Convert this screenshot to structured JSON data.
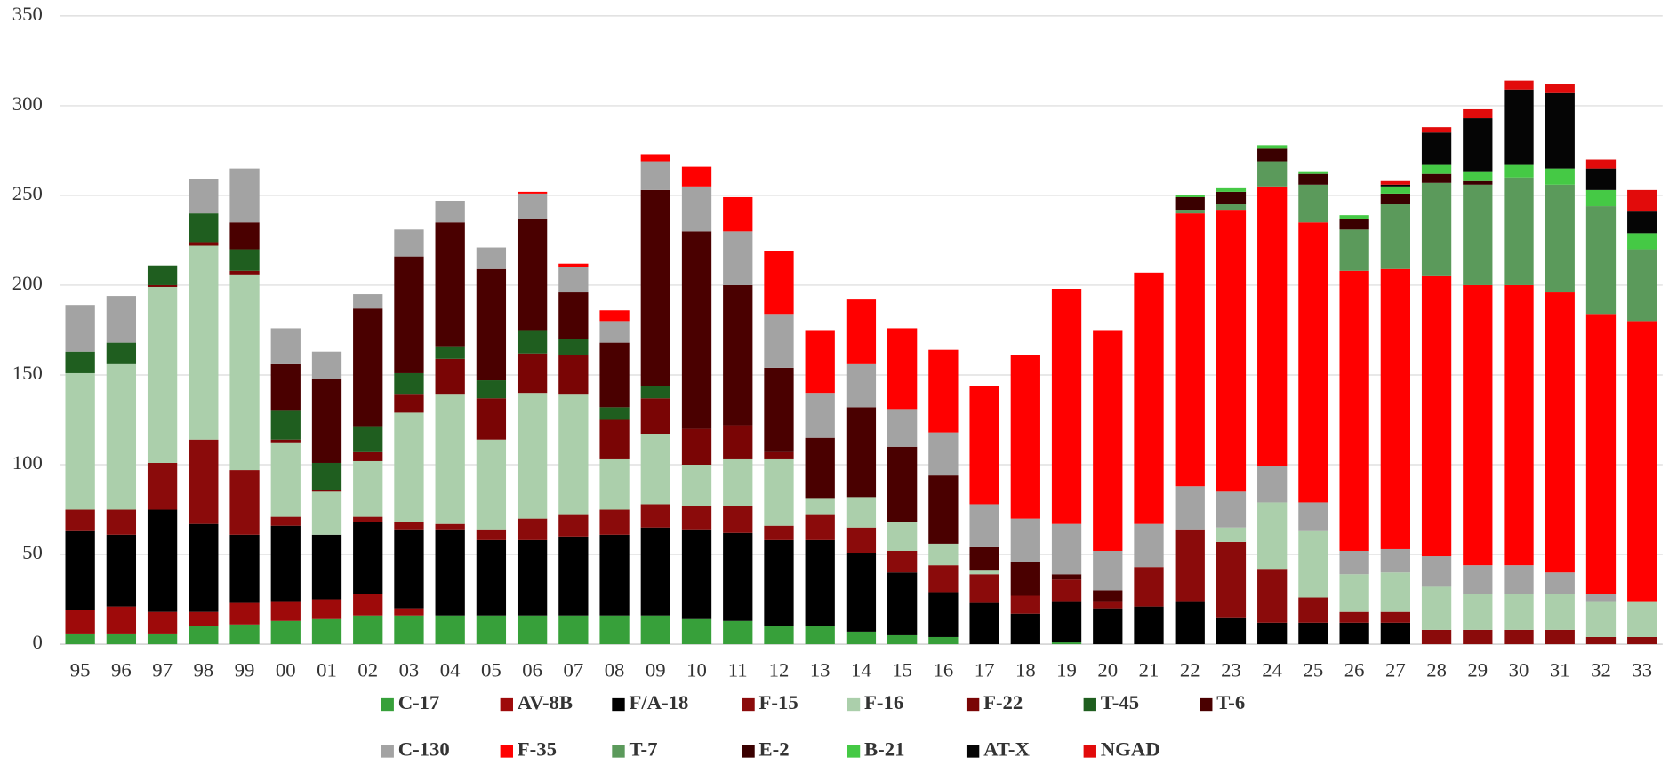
{
  "chart_data": {
    "type": "stacked-bar",
    "categories": [
      "95",
      "96",
      "97",
      "98",
      "99",
      "00",
      "01",
      "02",
      "03",
      "04",
      "05",
      "06",
      "07",
      "08",
      "09",
      "10",
      "11",
      "12",
      "13",
      "14",
      "15",
      "16",
      "17",
      "18",
      "19",
      "20",
      "21",
      "22",
      "23",
      "24",
      "25",
      "26",
      "27",
      "28",
      "29",
      "30",
      "31",
      "32",
      "33"
    ],
    "ylim": [
      0,
      350
    ],
    "yticks": [
      0,
      50,
      100,
      150,
      200,
      250,
      300,
      350
    ],
    "grid": true,
    "legend": "bottom",
    "series": [
      {
        "name": "C-17",
        "color": "#37a03a",
        "values": [
          6,
          6,
          6,
          10,
          11,
          13,
          14,
          16,
          16,
          16,
          16,
          16,
          16,
          16,
          16,
          14,
          13,
          10,
          10,
          7,
          5,
          4,
          0,
          0,
          1,
          0,
          0,
          0,
          0,
          0,
          0,
          0,
          0,
          0,
          0,
          0,
          0,
          0,
          0
        ]
      },
      {
        "name": "AV-8B",
        "color": "#9e0a0a",
        "values": [
          13,
          15,
          12,
          8,
          12,
          11,
          11,
          12,
          4,
          0,
          0,
          0,
          0,
          0,
          0,
          0,
          0,
          0,
          0,
          0,
          0,
          0,
          0,
          0,
          0,
          0,
          0,
          0,
          0,
          0,
          0,
          0,
          0,
          0,
          0,
          0,
          0,
          0,
          0
        ]
      },
      {
        "name": "F/A-18",
        "color": "#000000",
        "values": [
          44,
          40,
          57,
          49,
          38,
          42,
          36,
          40,
          44,
          48,
          42,
          42,
          44,
          45,
          49,
          50,
          49,
          48,
          48,
          44,
          35,
          25,
          23,
          17,
          23,
          20,
          21,
          24,
          15,
          12,
          12,
          12,
          12,
          0,
          0,
          0,
          0,
          0,
          0
        ]
      },
      {
        "name": "F-15",
        "color": "#8b0b0b",
        "values": [
          12,
          14,
          26,
          47,
          36,
          5,
          0,
          3,
          4,
          3,
          6,
          12,
          12,
          14,
          13,
          13,
          15,
          8,
          14,
          14,
          12,
          15,
          16,
          10,
          12,
          4,
          22,
          40,
          42,
          30,
          14,
          6,
          6,
          8,
          8,
          8,
          8,
          4,
          4
        ]
      },
      {
        "name": "F-16",
        "color": "#abcfab",
        "values": [
          76,
          81,
          98,
          108,
          109,
          41,
          24,
          31,
          61,
          72,
          50,
          70,
          67,
          28,
          39,
          23,
          26,
          37,
          9,
          17,
          16,
          12,
          2,
          0,
          0,
          0,
          0,
          0,
          8,
          37,
          37,
          21,
          22,
          24,
          20,
          20,
          20,
          20,
          20
        ]
      },
      {
        "name": "F-22",
        "color": "#7a0505",
        "values": [
          0,
          0,
          1,
          2,
          2,
          2,
          1,
          5,
          10,
          20,
          23,
          22,
          22,
          22,
          20,
          20,
          19,
          4,
          0,
          0,
          0,
          0,
          0,
          0,
          0,
          0,
          0,
          0,
          0,
          0,
          0,
          0,
          0,
          0,
          0,
          0,
          0,
          0,
          0
        ]
      },
      {
        "name": "T-45",
        "color": "#1f5e1f",
        "values": [
          12,
          12,
          11,
          16,
          12,
          16,
          15,
          14,
          12,
          7,
          10,
          13,
          9,
          7,
          7,
          0,
          0,
          0,
          0,
          0,
          0,
          0,
          0,
          0,
          0,
          0,
          0,
          0,
          0,
          0,
          0,
          0,
          0,
          0,
          0,
          0,
          0,
          0,
          0
        ]
      },
      {
        "name": "T-6",
        "color": "#4a0000",
        "values": [
          0,
          0,
          0,
          0,
          15,
          26,
          47,
          66,
          65,
          69,
          62,
          62,
          26,
          36,
          109,
          110,
          78,
          47,
          34,
          50,
          42,
          38,
          13,
          19,
          3,
          6,
          0,
          0,
          0,
          0,
          0,
          0,
          0,
          0,
          0,
          0,
          0,
          0,
          0
        ]
      },
      {
        "name": "C-130",
        "color": "#a3a3a3",
        "values": [
          26,
          26,
          0,
          19,
          30,
          20,
          15,
          8,
          15,
          12,
          12,
          14,
          14,
          12,
          16,
          25,
          30,
          30,
          25,
          24,
          21,
          24,
          24,
          24,
          28,
          22,
          24,
          24,
          20,
          20,
          16,
          13,
          13,
          17,
          16,
          16,
          12,
          4,
          0
        ]
      },
      {
        "name": "F-35",
        "color": "#ff0000",
        "values": [
          0,
          0,
          0,
          0,
          0,
          0,
          0,
          0,
          0,
          0,
          0,
          1,
          2,
          6,
          4,
          11,
          19,
          35,
          35,
          36,
          45,
          46,
          66,
          91,
          131,
          123,
          140,
          152,
          157,
          156,
          156,
          156,
          156,
          156,
          156,
          156,
          156,
          156,
          156
        ]
      },
      {
        "name": "T-7",
        "color": "#5b9a5b",
        "values": [
          0,
          0,
          0,
          0,
          0,
          0,
          0,
          0,
          0,
          0,
          0,
          0,
          0,
          0,
          0,
          0,
          0,
          0,
          0,
          0,
          0,
          0,
          0,
          0,
          0,
          0,
          0,
          2,
          3,
          14,
          21,
          23,
          36,
          52,
          56,
          60,
          60,
          60,
          40
        ]
      },
      {
        "name": "E-2",
        "color": "#3a0000",
        "values": [
          0,
          0,
          0,
          0,
          0,
          0,
          0,
          0,
          0,
          0,
          0,
          0,
          0,
          0,
          0,
          0,
          0,
          0,
          0,
          0,
          0,
          0,
          0,
          0,
          0,
          0,
          0,
          7,
          7,
          7,
          6,
          6,
          6,
          5,
          2,
          0,
          0,
          0,
          0
        ]
      },
      {
        "name": "B-21",
        "color": "#45c945",
        "values": [
          0,
          0,
          0,
          0,
          0,
          0,
          0,
          0,
          0,
          0,
          0,
          0,
          0,
          0,
          0,
          0,
          0,
          0,
          0,
          0,
          0,
          0,
          0,
          0,
          0,
          0,
          0,
          1,
          2,
          2,
          1,
          2,
          4,
          5,
          5,
          7,
          9,
          9,
          9
        ]
      },
      {
        "name": "AT-X",
        "color": "#050505",
        "values": [
          0,
          0,
          0,
          0,
          0,
          0,
          0,
          0,
          0,
          0,
          0,
          0,
          0,
          0,
          0,
          0,
          0,
          0,
          0,
          0,
          0,
          0,
          0,
          0,
          0,
          0,
          0,
          0,
          0,
          0,
          0,
          0,
          1,
          18,
          30,
          42,
          42,
          12,
          12
        ]
      },
      {
        "name": "NGAD",
        "color": "#e20b0b",
        "values": [
          0,
          0,
          0,
          0,
          0,
          0,
          0,
          0,
          0,
          0,
          0,
          0,
          0,
          0,
          0,
          0,
          0,
          0,
          0,
          0,
          0,
          0,
          0,
          0,
          0,
          0,
          0,
          0,
          0,
          0,
          0,
          0,
          2,
          3,
          5,
          5,
          5,
          5,
          12
        ]
      }
    ]
  }
}
